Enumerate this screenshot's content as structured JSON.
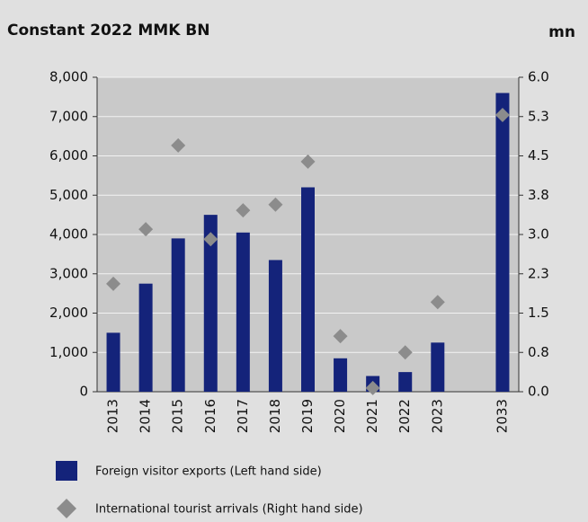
{
  "chart_data": {
    "type": "bar",
    "title": "Constant 2022 MMK BN",
    "y2_label": "mn",
    "categories": [
      "2013",
      "2014",
      "2015",
      "2016",
      "2017",
      "2018",
      "2019",
      "2020",
      "2021",
      "2022",
      "2023",
      null,
      "2033"
    ],
    "series": [
      {
        "name": "Foreign visitor exports (Left hand side)",
        "color": "#14237a",
        "type": "bar",
        "values": [
          1500,
          2750,
          3900,
          4500,
          4050,
          3350,
          5200,
          850,
          400,
          500,
          1250,
          null,
          7600
        ]
      },
      {
        "name": "International tourist arrivals (Right hand side)",
        "color": "#8c8c8c",
        "type": "scatter",
        "axis": "y2",
        "values": [
          2.06,
          3.1,
          4.7,
          2.91,
          3.46,
          3.57,
          4.39,
          1.06,
          0.07,
          0.75,
          1.71,
          null,
          5.28
        ]
      }
    ],
    "ylim": [
      0,
      8000
    ],
    "yticks": [
      0,
      {
        "value": 1000,
        "label": "1,000"
      },
      {
        "value": 2000,
        "label": "2,000"
      },
      {
        "value": 3000,
        "label": "3,000"
      },
      {
        "value": 4000,
        "label": "4,000"
      },
      {
        "value": 5000,
        "label": "5,000"
      },
      {
        "value": 6000,
        "label": "6,000"
      },
      {
        "value": 7000,
        "label": "7,000"
      },
      {
        "value": 8000,
        "label": "8,000"
      }
    ],
    "y2lim": [
      0,
      6
    ],
    "y2ticks": [
      {
        "value": 0,
        "label": "0.0"
      },
      {
        "value": 0.75,
        "label": "0.8"
      },
      1.5,
      {
        "value": 2.25,
        "label": "2.3"
      },
      {
        "value": 3,
        "label": "3.0"
      },
      {
        "value": 3.75,
        "label": "3.8"
      },
      4.5,
      {
        "value": 5.25,
        "label": "5.3"
      },
      {
        "value": 6,
        "label": "6.0"
      }
    ],
    "grid": true,
    "legend": "bottom"
  }
}
